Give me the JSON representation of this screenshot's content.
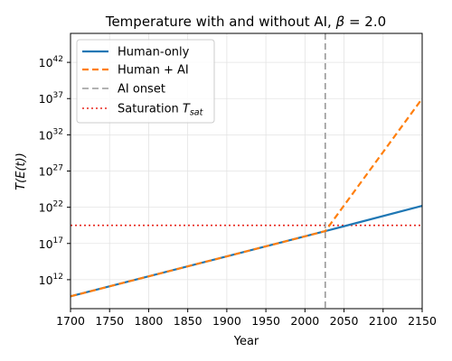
{
  "chart_data": {
    "type": "line",
    "title_prefix": "Temperature with and without AI, ",
    "title_symbol": "β",
    "title_suffix": " = 2.0",
    "xlabel": "Year",
    "ylabel_main": "T(E(t))",
    "xlim": [
      1700,
      2150
    ],
    "ylim_log10": [
      8,
      46
    ],
    "y_scale": "log",
    "grid": true,
    "legend_position": "top-left",
    "x_ticks": [
      1700,
      1750,
      1800,
      1850,
      1900,
      1950,
      2000,
      2050,
      2100,
      2150
    ],
    "x_tick_labels": [
      "1700",
      "1750",
      "1800",
      "1850",
      "1900",
      "1950",
      "2000",
      "2050",
      "2100",
      "2150"
    ],
    "y_ticks_log10": [
      12,
      17,
      22,
      27,
      32,
      37,
      42
    ],
    "y_tick_base": "10",
    "y_tick_exponents": [
      "12",
      "17",
      "22",
      "27",
      "32",
      "37",
      "42"
    ],
    "series": [
      {
        "name": "Human-only",
        "style": "solid",
        "color": "#1f77b4",
        "x": [
          1700,
          2026,
          2150
        ],
        "log10_y": [
          9.7,
          18.7,
          22.2
        ]
      },
      {
        "name": "Human + AI",
        "style": "dashed",
        "color": "#ff7f0e",
        "x": [
          1700,
          2026,
          2150
        ],
        "log10_y": [
          9.7,
          18.7,
          37.0
        ]
      }
    ],
    "ai_onset": {
      "name": "AI onset",
      "x": 2026,
      "color": "#999999",
      "style": "dashed"
    },
    "saturation": {
      "name_prefix": "Saturation ",
      "name_symbol": "T",
      "name_sub": "sat",
      "log10_y": 19.5,
      "color": "#e8251b",
      "style": "dotted"
    }
  }
}
